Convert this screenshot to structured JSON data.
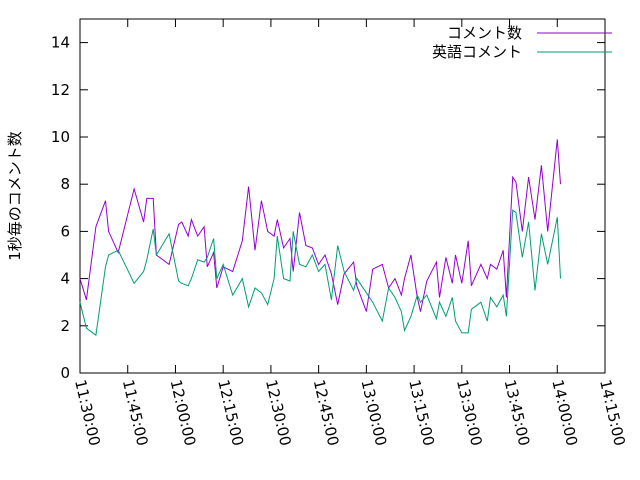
{
  "chart_data": {
    "type": "line",
    "y_label": "1秒毎のコメント数",
    "x": [
      "11:30:00",
      "11:32:00",
      "11:35:00",
      "11:38:00",
      "11:39:00",
      "11:42:00",
      "11:47:00",
      "11:50:00",
      "11:51:00",
      "11:53:00",
      "11:54:00",
      "11:58:00",
      "12:01:00",
      "12:02:00",
      "12:04:00",
      "12:05:00",
      "12:07:00",
      "12:09:00",
      "12:10:00",
      "12:12:00",
      "12:13:00",
      "12:15:00",
      "12:18:00",
      "12:21:00",
      "12:23:00",
      "12:25:00",
      "12:27:00",
      "12:29:00",
      "12:31:00",
      "12:32:00",
      "12:34:00",
      "12:36:00",
      "12:37:00",
      "12:39:00",
      "12:41:00",
      "12:43:00",
      "12:45:00",
      "12:47:00",
      "12:49:00",
      "12:51:00",
      "12:53:00",
      "12:56:00",
      "12:57:00",
      "13:00:00",
      "13:02:00",
      "13:05:00",
      "13:07:00",
      "13:09:00",
      "13:11:00",
      "13:12:00",
      "13:14:00",
      "13:16:00",
      "13:17:00",
      "13:19:00",
      "13:22:00",
      "13:23:00",
      "13:25:00",
      "13:27:00",
      "13:28:00",
      "13:30:00",
      "13:32:00",
      "13:33:00",
      "13:36:00",
      "13:38:00",
      "13:39:00",
      "13:41:00",
      "13:43:00",
      "13:44:00",
      "13:46:00",
      "13:47:00",
      "13:49:00",
      "13:51:00",
      "13:53:00",
      "13:55:00",
      "13:57:00",
      "14:00:00",
      "14:01:00"
    ],
    "series": [
      {
        "name": "コメント数",
        "color": "#9400d3",
        "values": [
          4.0,
          3.1,
          6.2,
          7.3,
          6.0,
          5.1,
          7.8,
          6.4,
          7.4,
          7.4,
          5.0,
          4.6,
          6.3,
          6.4,
          5.8,
          6.5,
          5.8,
          6.2,
          4.5,
          5.1,
          3.6,
          4.5,
          4.3,
          5.6,
          7.9,
          5.2,
          7.3,
          6.0,
          5.8,
          6.5,
          5.3,
          5.7,
          4.3,
          6.8,
          5.4,
          5.3,
          4.6,
          5.0,
          4.2,
          2.9,
          4.2,
          4.7,
          3.7,
          2.6,
          4.4,
          4.6,
          3.6,
          4.0,
          3.3,
          4.0,
          5.0,
          3.2,
          2.6,
          3.9,
          4.7,
          3.2,
          4.9,
          3.8,
          5.0,
          3.8,
          5.6,
          3.7,
          4.6,
          4.0,
          4.6,
          4.4,
          5.2,
          3.2,
          8.3,
          8.1,
          6.0,
          8.3,
          6.5,
          8.8,
          6.0,
          9.9,
          8.0
        ]
      },
      {
        "name": "英語コメント",
        "color": "#009e73",
        "values": [
          3.0,
          1.9,
          1.6,
          4.5,
          5.0,
          5.2,
          3.8,
          4.3,
          4.8,
          6.1,
          5.0,
          5.9,
          3.9,
          3.8,
          3.7,
          4.0,
          4.8,
          4.7,
          4.9,
          5.7,
          4.0,
          4.6,
          3.3,
          4.0,
          2.8,
          3.6,
          3.4,
          2.9,
          4.0,
          5.8,
          4.0,
          3.9,
          6.0,
          4.6,
          4.5,
          5.0,
          4.3,
          4.6,
          3.1,
          5.4,
          4.3,
          3.5,
          4.0,
          3.4,
          3.0,
          2.2,
          3.6,
          3.2,
          2.6,
          1.8,
          2.4,
          3.3,
          3.0,
          3.3,
          2.3,
          3.0,
          2.4,
          3.2,
          2.2,
          1.7,
          1.7,
          2.7,
          3.0,
          2.2,
          3.2,
          2.8,
          3.3,
          2.4,
          6.9,
          6.8,
          4.9,
          6.4,
          3.5,
          5.9,
          4.6,
          6.6,
          4.0
        ]
      }
    ],
    "xlim": [
      "11:30:00",
      "14:15:00"
    ],
    "xticks": [
      "11:30:00",
      "11:45:00",
      "12:00:00",
      "12:15:00",
      "12:30:00",
      "12:45:00",
      "13:00:00",
      "13:15:00",
      "13:30:00",
      "13:45:00",
      "14:00:00",
      "14:15:00"
    ],
    "ylim": [
      0,
      15
    ],
    "yticks": [
      0,
      2,
      4,
      6,
      8,
      10,
      12,
      14
    ],
    "legend": "top-right"
  }
}
